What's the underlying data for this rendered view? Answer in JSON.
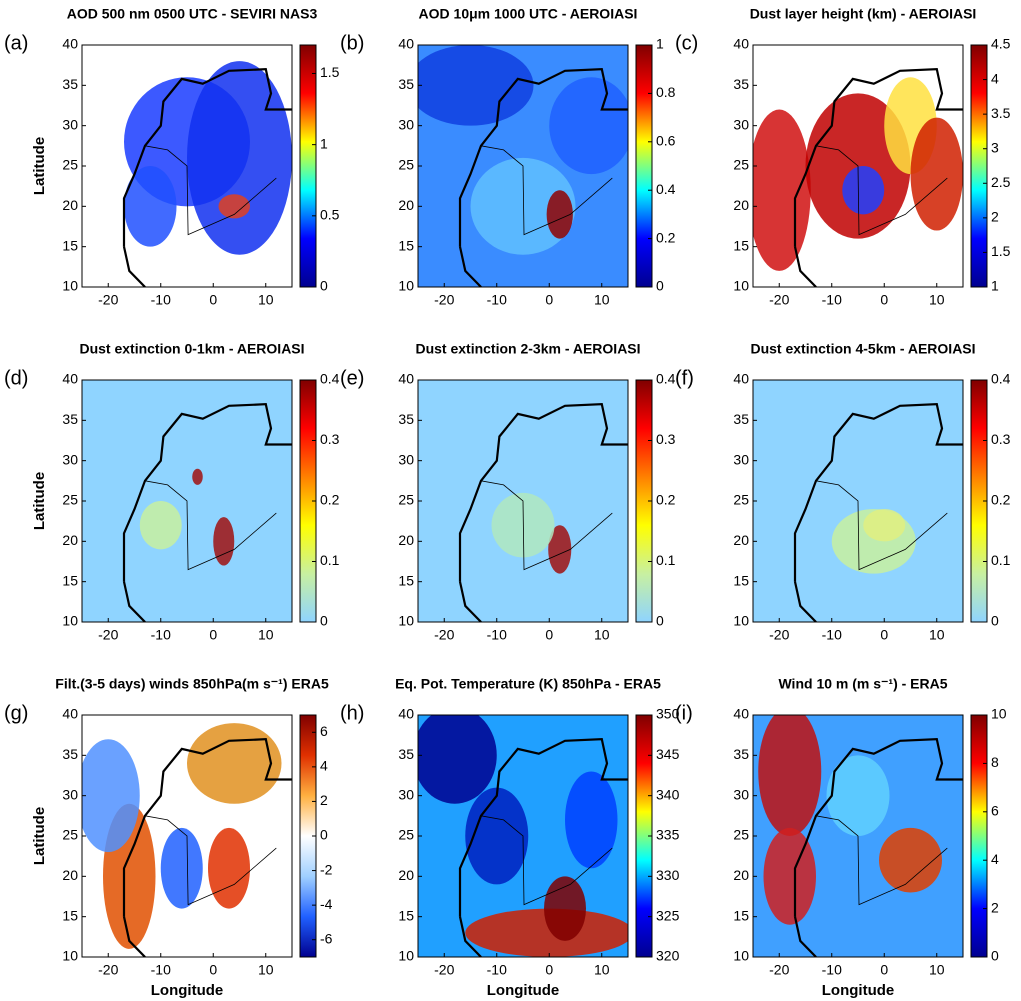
{
  "chart_data": [
    {
      "type": "map",
      "panel_label": "(a)",
      "title": "AOD 500 nm 0500 UTC - SEVIRI NAS3",
      "ylabel": "Latitude",
      "xlim": [
        -25,
        15
      ],
      "ylim": [
        10,
        40
      ],
      "xticks": [
        -20,
        -10,
        0,
        10
      ],
      "yticks": [
        10,
        15,
        20,
        25,
        30,
        35,
        40
      ],
      "clim": [
        0,
        1.7
      ],
      "cticks": [
        0,
        0.5,
        1,
        1.5
      ],
      "colormap": [
        "#00008f",
        "#0000ff",
        "#00ffff",
        "#ffff00",
        "#ff0000",
        "#800000"
      ]
    },
    {
      "type": "map",
      "panel_label": "(b)",
      "title": "AOD 10μm 1000 UTC - AEROIASI",
      "xlim": [
        -25,
        15
      ],
      "ylim": [
        10,
        40
      ],
      "xticks": [
        -20,
        -10,
        0,
        10
      ],
      "yticks": [
        10,
        15,
        20,
        25,
        30,
        35,
        40
      ],
      "clim": [
        0,
        1
      ],
      "cticks": [
        0,
        0.2,
        0.4,
        0.6,
        0.8,
        1
      ],
      "colormap": [
        "#00008f",
        "#0000ff",
        "#00ffff",
        "#ffff00",
        "#ff0000",
        "#800000"
      ]
    },
    {
      "type": "map",
      "panel_label": "(c)",
      "title": "Dust layer height (km) - AEROIASI",
      "xlim": [
        -25,
        15
      ],
      "ylim": [
        10,
        40
      ],
      "xticks": [
        -20,
        -10,
        0,
        10
      ],
      "yticks": [
        10,
        15,
        20,
        25,
        30,
        35,
        40
      ],
      "clim": [
        1,
        4.5
      ],
      "cticks": [
        1,
        1.5,
        2,
        2.5,
        3,
        3.5,
        4,
        4.5
      ],
      "colormap": [
        "#00008f",
        "#0000ff",
        "#00ffff",
        "#ffff00",
        "#ff0000",
        "#800000"
      ]
    },
    {
      "type": "map",
      "panel_label": "(d)",
      "title": "Dust extinction 0-1km - AEROIASI",
      "ylabel": "Latitude",
      "xlim": [
        -25,
        15
      ],
      "ylim": [
        10,
        40
      ],
      "xticks": [
        -20,
        -10,
        0,
        10
      ],
      "yticks": [
        10,
        15,
        20,
        25,
        30,
        35,
        40
      ],
      "clim": [
        0,
        0.4
      ],
      "cticks": [
        0,
        0.1,
        0.2,
        0.3,
        0.4
      ],
      "colormap": [
        "#8fd4ff",
        "#c8f0a0",
        "#ffff00",
        "#ff8000",
        "#ff0000",
        "#800000"
      ]
    },
    {
      "type": "map",
      "panel_label": "(e)",
      "title": "Dust extinction 2-3km - AEROIASI",
      "xlim": [
        -25,
        15
      ],
      "ylim": [
        10,
        40
      ],
      "xticks": [
        -20,
        -10,
        0,
        10
      ],
      "yticks": [
        10,
        15,
        20,
        25,
        30,
        35,
        40
      ],
      "clim": [
        0,
        0.4
      ],
      "cticks": [
        0,
        0.1,
        0.2,
        0.3,
        0.4
      ],
      "colormap": [
        "#8fd4ff",
        "#c8f0a0",
        "#ffff00",
        "#ff8000",
        "#ff0000",
        "#800000"
      ]
    },
    {
      "type": "map",
      "panel_label": "(f)",
      "title": "Dust extinction 4-5km - AEROIASI",
      "xlim": [
        -25,
        15
      ],
      "ylim": [
        10,
        40
      ],
      "xticks": [
        -20,
        -10,
        0,
        10
      ],
      "yticks": [
        10,
        15,
        20,
        25,
        30,
        35,
        40
      ],
      "clim": [
        0,
        0.4
      ],
      "cticks": [
        0,
        0.1,
        0.2,
        0.3,
        0.4
      ],
      "colormap": [
        "#8fd4ff",
        "#c8f0a0",
        "#ffff00",
        "#ff8000",
        "#ff0000",
        "#800000"
      ]
    },
    {
      "type": "map",
      "panel_label": "(g)",
      "title": "Filt.(3-5 days) winds 850hPa(m s⁻¹) ERA5",
      "ylabel": "Latitude",
      "xlabel": "Longitude",
      "xlim": [
        -25,
        15
      ],
      "ylim": [
        10,
        40
      ],
      "xticks": [
        -20,
        -10,
        0,
        10
      ],
      "yticks": [
        10,
        15,
        20,
        25,
        30,
        35,
        40
      ],
      "clim": [
        -7,
        7
      ],
      "cticks": [
        -6,
        -4,
        -2,
        0,
        2,
        4,
        6
      ],
      "colormap": [
        "#00008f",
        "#2060ff",
        "#a0d0ff",
        "#ffffff",
        "#ffb040",
        "#e03000",
        "#800000"
      ]
    },
    {
      "type": "map",
      "panel_label": "(h)",
      "title": "Eq. Pot. Temperature (K) 850hPa - ERA5",
      "xlabel": "Longitude",
      "xlim": [
        -25,
        15
      ],
      "ylim": [
        10,
        40
      ],
      "xticks": [
        -20,
        -10,
        0,
        10
      ],
      "yticks": [
        10,
        15,
        20,
        25,
        30,
        35,
        40
      ],
      "clim": [
        320,
        350
      ],
      "cticks": [
        320,
        325,
        330,
        335,
        340,
        345,
        350
      ],
      "colormap": [
        "#00008f",
        "#0000ff",
        "#00ffff",
        "#ffff00",
        "#ff0000",
        "#800000"
      ]
    },
    {
      "type": "map",
      "panel_label": "(i)",
      "title": "Wind 10 m (m s⁻¹) - ERA5",
      "xlabel": "Longitude",
      "xlim": [
        -25,
        15
      ],
      "ylim": [
        10,
        40
      ],
      "xticks": [
        -20,
        -10,
        0,
        10
      ],
      "yticks": [
        10,
        15,
        20,
        25,
        30,
        35,
        40
      ],
      "clim": [
        0,
        10
      ],
      "cticks": [
        0,
        2,
        4,
        6,
        8,
        10
      ],
      "colormap": [
        "#00008f",
        "#0000ff",
        "#00ffff",
        "#ffff00",
        "#ff0000",
        "#800000"
      ]
    }
  ]
}
